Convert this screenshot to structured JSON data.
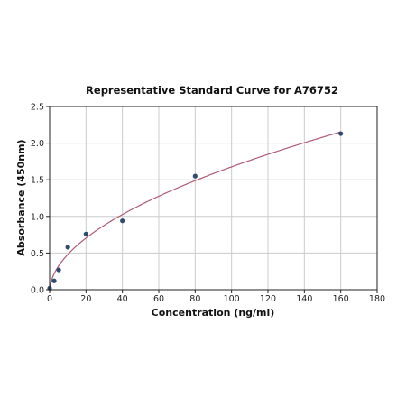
{
  "chart_data": {
    "type": "scatter",
    "title": "Representative Standard Curve for A76752",
    "xlabel": "Concentration (ng/ml)",
    "ylabel": "Absorbance (450nm)",
    "xlim": [
      0,
      180
    ],
    "ylim": [
      0,
      2.5
    ],
    "xticks": [
      0,
      20,
      40,
      60,
      80,
      100,
      120,
      140,
      160,
      180
    ],
    "yticks": [
      0.0,
      0.5,
      1.0,
      1.5,
      2.0,
      2.5
    ],
    "xtick_labels": [
      "0",
      "20",
      "40",
      "60",
      "80",
      "100",
      "120",
      "140",
      "160",
      "180"
    ],
    "ytick_labels": [
      "0.0",
      "0.5",
      "1.0",
      "1.5",
      "2.0",
      "2.5"
    ],
    "grid": true,
    "series": [
      {
        "x": [
          0,
          2.5,
          5,
          10,
          20,
          40,
          80,
          160
        ],
        "y": [
          0.02,
          0.12,
          0.27,
          0.58,
          0.76,
          0.94,
          1.55,
          2.13
        ],
        "fit": "curve"
      }
    ],
    "colors": {
      "points": "#2f4b6e",
      "curve": "#b05a78"
    }
  }
}
